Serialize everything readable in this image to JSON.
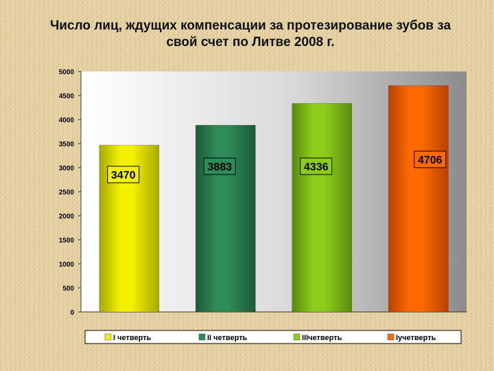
{
  "chart_data": {
    "type": "bar",
    "title_lines": [
      "Число лиц, ждущих компенсации за протезирование зубов за",
      "свой счет по Литве 2008 г."
    ],
    "categories": [
      "I четверть",
      "II четверть",
      "IIIчетверть",
      "Iучетверть"
    ],
    "values": [
      3470,
      3883,
      4336,
      4706
    ],
    "data_labels": [
      "3470",
      "3883",
      "4336",
      "4706"
    ],
    "y_ticks": [
      0,
      500,
      1000,
      1500,
      2000,
      2500,
      3000,
      3500,
      4000,
      4500,
      5000
    ],
    "ylim": [
      0,
      5000
    ],
    "xlabel": "",
    "ylabel": "",
    "grid": false,
    "legend_position": "bottom",
    "colors": [
      "#f2f200",
      "#2e8b57",
      "#8ccc1a",
      "#ff6a00"
    ],
    "colors_dark": [
      "#a8a800",
      "#1c5a38",
      "#5a8a0e",
      "#b84200"
    ]
  }
}
